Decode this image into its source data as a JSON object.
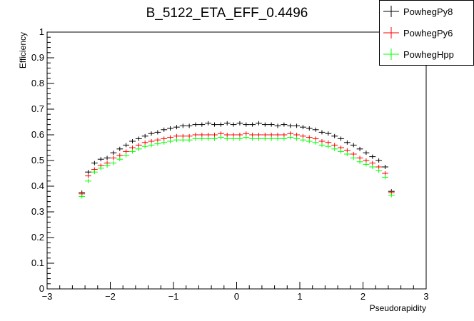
{
  "chart_data": {
    "type": "scatter",
    "title": "B_5122_ETA_EFF_0.4496",
    "xlabel": "Pseudorapidity",
    "ylabel": "Efficiency",
    "xlim": [
      -3,
      3
    ],
    "ylim": [
      0,
      1
    ],
    "xticks": [
      "−3",
      "−2",
      "−1",
      "0",
      "1",
      "2",
      "3"
    ],
    "yticks": [
      "0",
      "0.1",
      "0.2",
      "0.3",
      "0.4",
      "0.5",
      "0.6",
      "0.7",
      "0.8",
      "0.9",
      "1"
    ],
    "grid": false,
    "legend_position": "top-right",
    "x": [
      -2.45,
      -2.35,
      -2.25,
      -2.15,
      -2.05,
      -1.95,
      -1.85,
      -1.75,
      -1.65,
      -1.55,
      -1.45,
      -1.35,
      -1.25,
      -1.15,
      -1.05,
      -0.95,
      -0.85,
      -0.75,
      -0.65,
      -0.55,
      -0.45,
      -0.35,
      -0.25,
      -0.15,
      -0.05,
      0.05,
      0.15,
      0.25,
      0.35,
      0.45,
      0.55,
      0.65,
      0.75,
      0.85,
      0.95,
      1.05,
      1.15,
      1.25,
      1.35,
      1.45,
      1.55,
      1.65,
      1.75,
      1.85,
      1.95,
      2.05,
      2.15,
      2.25,
      2.35,
      2.45
    ],
    "series": [
      {
        "name": "PowhegPy8",
        "color": "#000000",
        "values": [
          0.375,
          0.455,
          0.49,
          0.505,
          0.51,
          0.53,
          0.545,
          0.56,
          0.575,
          0.585,
          0.595,
          0.605,
          0.61,
          0.62,
          0.625,
          0.63,
          0.635,
          0.635,
          0.64,
          0.64,
          0.645,
          0.64,
          0.64,
          0.645,
          0.64,
          0.645,
          0.64,
          0.64,
          0.645,
          0.64,
          0.64,
          0.635,
          0.64,
          0.635,
          0.635,
          0.63,
          0.625,
          0.62,
          0.61,
          0.605,
          0.595,
          0.585,
          0.57,
          0.56,
          0.545,
          0.53,
          0.515,
          0.5,
          0.475,
          0.38
        ]
      },
      {
        "name": "PowhegPy6",
        "color": "#ff0000",
        "values": [
          0.37,
          0.44,
          0.465,
          0.48,
          0.49,
          0.51,
          0.52,
          0.535,
          0.55,
          0.56,
          0.57,
          0.575,
          0.58,
          0.585,
          0.59,
          0.595,
          0.595,
          0.595,
          0.6,
          0.6,
          0.6,
          0.6,
          0.605,
          0.6,
          0.6,
          0.6,
          0.605,
          0.6,
          0.6,
          0.6,
          0.6,
          0.6,
          0.6,
          0.605,
          0.6,
          0.595,
          0.59,
          0.585,
          0.575,
          0.57,
          0.56,
          0.55,
          0.54,
          0.525,
          0.51,
          0.5,
          0.49,
          0.475,
          0.45,
          0.375
        ]
      },
      {
        "name": "PowhegHpp",
        "color": "#00ff00",
        "values": [
          0.36,
          0.42,
          0.455,
          0.47,
          0.48,
          0.49,
          0.505,
          0.52,
          0.535,
          0.545,
          0.555,
          0.56,
          0.565,
          0.57,
          0.575,
          0.58,
          0.58,
          0.58,
          0.585,
          0.585,
          0.585,
          0.585,
          0.59,
          0.585,
          0.585,
          0.585,
          0.59,
          0.585,
          0.585,
          0.585,
          0.585,
          0.585,
          0.585,
          0.59,
          0.585,
          0.58,
          0.575,
          0.57,
          0.56,
          0.555,
          0.545,
          0.535,
          0.525,
          0.51,
          0.495,
          0.485,
          0.475,
          0.46,
          0.435,
          0.365
        ]
      }
    ]
  }
}
